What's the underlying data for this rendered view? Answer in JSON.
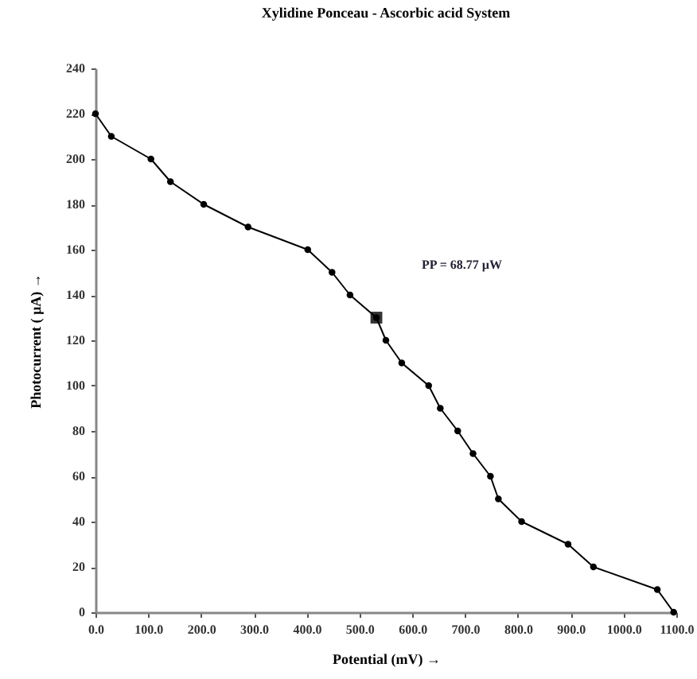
{
  "chart_data": {
    "type": "line",
    "title": "Xylidine Ponceau - Ascorbic acid System",
    "xlabel": "Potential (mV) →",
    "ylabel": "Photocurrent ( µA) →",
    "annotations": [
      "PP = 68.77 µW"
    ],
    "series": [
      {
        "color": "#000000",
        "marker": "circle",
        "x": [
          0,
          30,
          105,
          142,
          205,
          289,
          402,
          448,
          482,
          532,
          550,
          580,
          631,
          653,
          686,
          715,
          748,
          763,
          807,
          895,
          943,
          1064,
          1095
        ],
        "values": [
          220,
          210,
          200,
          190,
          180,
          170,
          160,
          150,
          140,
          130,
          120,
          110,
          100,
          90,
          80,
          70,
          60,
          50,
          40,
          30,
          20,
          10,
          0
        ]
      },
      {
        "type": "scatter",
        "color": "#000000",
        "marker": "square",
        "x": [
          532
        ],
        "values": [
          130
        ]
      }
    ],
    "xlim": [
      0,
      1100
    ],
    "xticks": [
      {
        "value": 0,
        "label": "0.0"
      },
      {
        "value": 100,
        "label": "100.0"
      },
      {
        "value": 200,
        "label": "200.0"
      },
      {
        "value": 300,
        "label": "300.0"
      },
      {
        "value": 400,
        "label": "400.0"
      },
      {
        "value": 500,
        "label": "500.0"
      },
      {
        "value": 600,
        "label": "600.0"
      },
      {
        "value": 700,
        "label": "700.0"
      },
      {
        "value": 800,
        "label": "800.0"
      },
      {
        "value": 900,
        "label": "900.0"
      },
      {
        "value": 1000,
        "label": "1000.0"
      },
      {
        "value": 1100,
        "label": "1100.0"
      }
    ],
    "ylim": [
      0,
      240
    ],
    "yticks": [
      0,
      20,
      40,
      60,
      80,
      100,
      120,
      140,
      160,
      180,
      200,
      220,
      240
    ],
    "grid": false
  }
}
